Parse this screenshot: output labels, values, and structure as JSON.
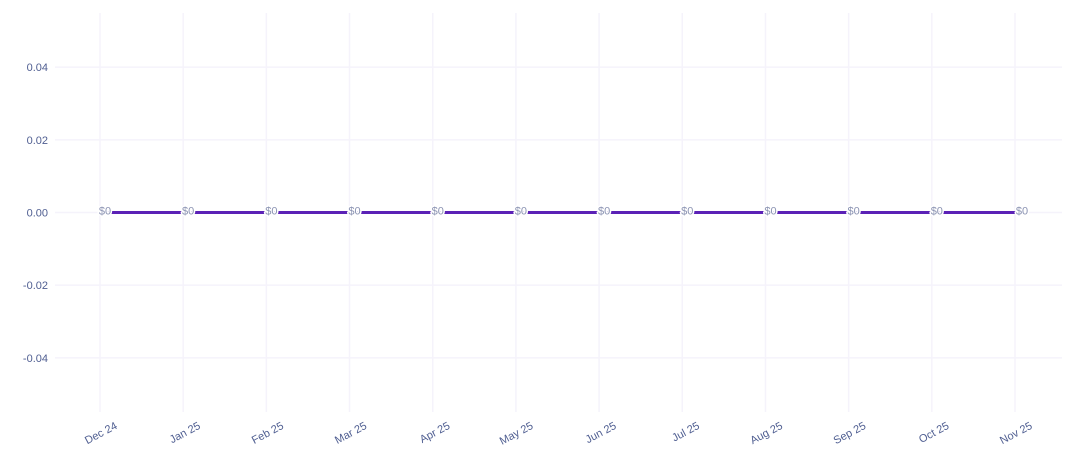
{
  "page": {
    "background_color": "#ffffff"
  },
  "chart_data": {
    "type": "line",
    "title": "",
    "xlabel": "",
    "ylabel": "",
    "categories": [
      "Dec 24",
      "Jan 25",
      "Feb 25",
      "Mar 25",
      "Apr 25",
      "May 25",
      "Jun 25",
      "Jul 25",
      "Aug 25",
      "Sep 25",
      "Oct 25",
      "Nov 25"
    ],
    "series": [
      {
        "name": "amount",
        "values": [
          0,
          0,
          0,
          0,
          0,
          0,
          0,
          0,
          0,
          0,
          0,
          0
        ],
        "data_labels": [
          "$0",
          "$0",
          "$0",
          "$0",
          "$0",
          "$0",
          "$0",
          "$0",
          "$0",
          "$0",
          "$0",
          "$0"
        ]
      }
    ],
    "yticks": {
      "values": [
        0.04,
        0.02,
        0,
        -0.02,
        -0.04
      ],
      "labels": [
        "0.04",
        "0.02",
        "0.00",
        "-0.02",
        "-0.04"
      ]
    },
    "ylim": [
      -0.0549,
      0.0549
    ],
    "grid": true,
    "legend": "none",
    "x_label_rotation_deg": -28,
    "colors": {
      "line": "#5b21b6",
      "axis_label": "#4f5e91",
      "data_label": "#8a92b2",
      "data_label_stroke": "#ffffff",
      "grid_line": "#f5f3fb",
      "background": "#ffffff"
    }
  }
}
